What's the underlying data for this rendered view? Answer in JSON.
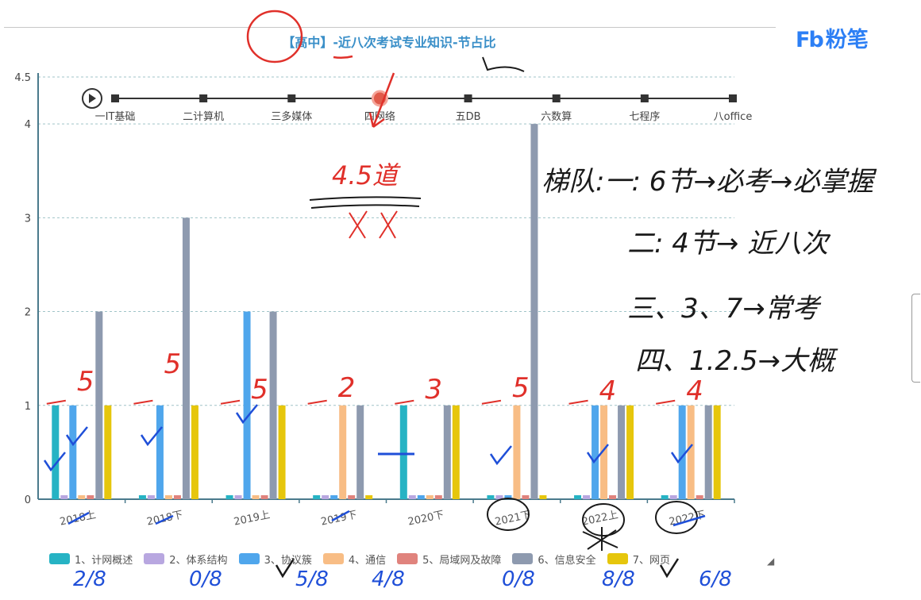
{
  "header": {
    "title": "【高中】-近八次考试专业知识-节占比",
    "brand_mark": "Fb",
    "brand_name": "粉笔"
  },
  "timeline": {
    "steps": [
      "一IT基础",
      "二计算机",
      "三多媒体",
      "四网络",
      "五DB",
      "六数算",
      "七程序",
      "八office"
    ],
    "active_index": 3,
    "play_icon": "play-icon"
  },
  "colors": {
    "axis": "#4a7a8c",
    "grid": "#a0c4c8",
    "timeline_active": "#e05a4a",
    "ink_red": "#e0302a",
    "ink_blue": "#1f4fd8",
    "ink_black": "#1a1a1a"
  },
  "chart_data": {
    "type": "bar",
    "categories": [
      "2018上",
      "2018下",
      "2019上",
      "2019下",
      "2020下",
      "2021下",
      "2022上",
      "2022下"
    ],
    "ylim": [
      0,
      4.5
    ],
    "yticks": [
      "0",
      "1",
      "2",
      "3",
      "4",
      "4.5"
    ],
    "grid": true,
    "legend_position": "bottom",
    "series": [
      {
        "name": "1、计网概述",
        "color": "#26b3c4",
        "values": [
          1,
          0,
          0,
          0,
          1,
          0,
          0,
          0
        ]
      },
      {
        "name": "2、体系结构",
        "color": "#b8a7e0",
        "values": [
          0,
          0,
          0,
          0,
          0,
          0,
          0,
          0
        ]
      },
      {
        "name": "3、协议簇",
        "color": "#4fa6ec",
        "values": [
          1,
          1,
          2,
          0,
          0,
          0,
          1,
          1
        ]
      },
      {
        "name": "4、通信",
        "color": "#f8bd85",
        "values": [
          0,
          0,
          0,
          1,
          0,
          1,
          1,
          1
        ]
      },
      {
        "name": "5、局域网及故障",
        "color": "#e0837d",
        "values": [
          0,
          0,
          0,
          0,
          0,
          0,
          0,
          0
        ]
      },
      {
        "name": "6、信息安全",
        "color": "#8e9aaf",
        "values": [
          2,
          3,
          2,
          1,
          1,
          4,
          1,
          1
        ]
      },
      {
        "name": "7、网页",
        "color": "#e6c60c",
        "values": [
          1,
          1,
          1,
          0,
          1,
          0,
          1,
          1
        ]
      }
    ]
  },
  "annotations": {
    "timeline_note": "4.5道",
    "category_totals": [
      "5",
      "5",
      "5",
      "2",
      "3",
      "5",
      "4",
      "4"
    ],
    "bottom_fractions": [
      "2/8",
      "0/8",
      "5/8",
      "4/8",
      "0/8",
      "8/8",
      "6/8"
    ],
    "summary_lines": [
      "梯队:一: 6节→必考→必掌握",
      "二: 4节→ 近八次",
      "三、3、7→常考",
      "四、1.2.5→大概"
    ]
  }
}
